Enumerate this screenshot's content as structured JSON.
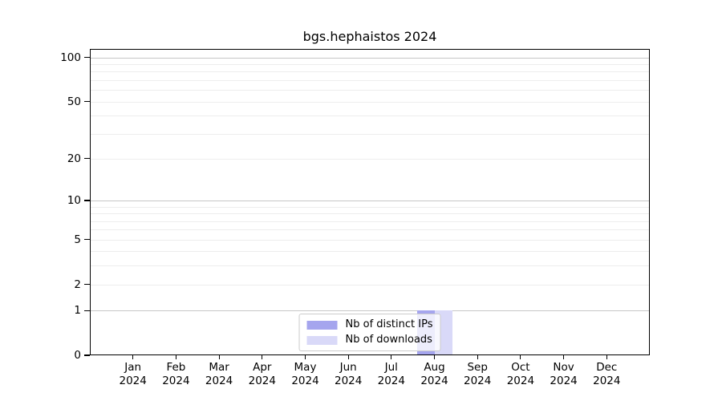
{
  "title": "bgs.hephaistos 2024",
  "chart_data": {
    "type": "bar",
    "title": "bgs.hephaistos 2024",
    "categories": [
      "Jan",
      "Feb",
      "Mar",
      "Apr",
      "May",
      "Jun",
      "Jul",
      "Aug",
      "Sep",
      "Oct",
      "Nov",
      "Dec"
    ],
    "category_year": "2024",
    "series": [
      {
        "name": "Nb of distinct IPs",
        "color": "#a5a5ee",
        "values": [
          0,
          0,
          0,
          0,
          0,
          0,
          0,
          1,
          0,
          0,
          0,
          0
        ]
      },
      {
        "name": "Nb of downloads",
        "color": "#d9d9f8",
        "values": [
          0,
          0,
          0,
          0,
          0,
          0,
          0,
          1,
          0,
          0,
          0,
          0
        ]
      }
    ],
    "y_axis": {
      "scale": "log1p",
      "min": 0,
      "max": 114,
      "ticks": [
        0,
        1,
        2,
        5,
        10,
        20,
        50,
        100
      ],
      "minor_gridlines": [
        3,
        4,
        6,
        7,
        8,
        9,
        30,
        40,
        60,
        70,
        80,
        90
      ],
      "major_gridlines": [
        1,
        10,
        100
      ]
    },
    "xlabel": "",
    "ylabel": "",
    "grid": true,
    "legend": {
      "position": "lower center"
    }
  },
  "colors": {
    "background": "#ffffff",
    "axis": "#000000",
    "grid_major": "#c6c6c6",
    "grid_minor": "#ededed",
    "legend_border": "#cccccc",
    "text": "#000000"
  }
}
